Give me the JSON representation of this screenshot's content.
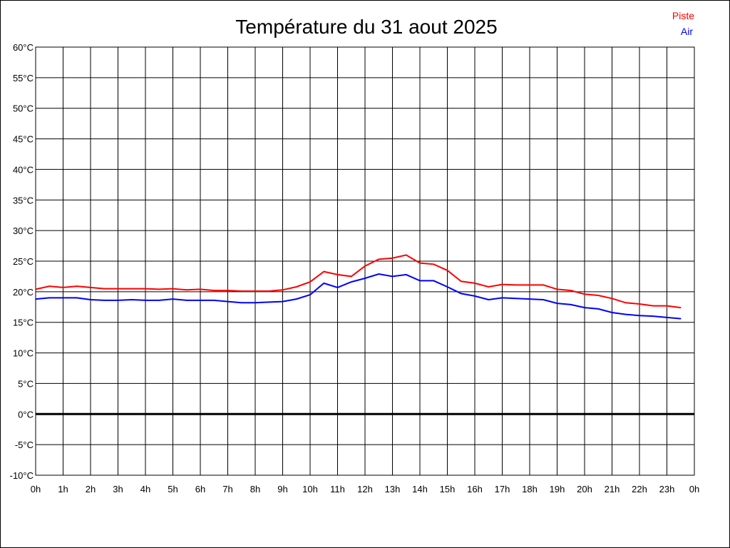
{
  "chart_data": {
    "type": "line",
    "title": "Température du 31 aout 2025",
    "xlabel": "",
    "ylabel": "",
    "ylim": [
      -10,
      60
    ],
    "xlim": [
      0,
      24
    ],
    "grid": true,
    "legend_position": "top-right",
    "y_ticks": [
      "60°C",
      "55°C",
      "50°C",
      "45°C",
      "40°C",
      "35°C",
      "30°C",
      "25°C",
      "20°C",
      "15°C",
      "10°C",
      "5°C",
      "0°C",
      "-5°C",
      "-10°C"
    ],
    "y_tick_values": [
      60,
      55,
      50,
      45,
      40,
      35,
      30,
      25,
      20,
      15,
      10,
      5,
      0,
      -5,
      -10
    ],
    "x_ticks": [
      "0h",
      "1h",
      "2h",
      "3h",
      "4h",
      "5h",
      "6h",
      "7h",
      "8h",
      "9h",
      "10h",
      "11h",
      "12h",
      "13h",
      "14h",
      "15h",
      "16h",
      "17h",
      "18h",
      "19h",
      "20h",
      "21h",
      "22h",
      "23h",
      "0h"
    ],
    "x": [
      0,
      0.5,
      1,
      1.5,
      2,
      2.5,
      3,
      3.5,
      4,
      4.5,
      5,
      5.5,
      6,
      6.5,
      7,
      7.5,
      8,
      8.5,
      9,
      9.5,
      10,
      10.5,
      11,
      11.5,
      12,
      12.5,
      13,
      13.5,
      14,
      14.5,
      15,
      15.5,
      16,
      16.5,
      17,
      17.5,
      18,
      18.5,
      19,
      19.5,
      20,
      20.5,
      21,
      21.5,
      22,
      22.5,
      23,
      23.5
    ],
    "series": [
      {
        "name": "Piste",
        "color": "#ff0000",
        "values": [
          20.4,
          20.9,
          20.7,
          20.9,
          20.7,
          20.5,
          20.5,
          20.5,
          20.5,
          20.4,
          20.5,
          20.3,
          20.4,
          20.2,
          20.2,
          20.1,
          20.1,
          20.1,
          20.3,
          20.8,
          21.6,
          23.3,
          22.8,
          22.5,
          24.2,
          25.3,
          25.5,
          26.0,
          24.7,
          24.5,
          23.5,
          21.7,
          21.4,
          20.8,
          21.2,
          21.1,
          21.1,
          21.1,
          20.4,
          20.2,
          19.6,
          19.4,
          18.9,
          18.2,
          18.0,
          17.7,
          17.7,
          17.4
        ]
      },
      {
        "name": "Air",
        "color": "#0000ff",
        "values": [
          18.8,
          19.0,
          19.0,
          19.0,
          18.7,
          18.6,
          18.6,
          18.7,
          18.6,
          18.6,
          18.8,
          18.6,
          18.6,
          18.6,
          18.4,
          18.2,
          18.2,
          18.3,
          18.4,
          18.8,
          19.5,
          21.4,
          20.7,
          21.6,
          22.2,
          22.9,
          22.5,
          22.8,
          21.8,
          21.8,
          20.8,
          19.7,
          19.3,
          18.7,
          19.0,
          18.9,
          18.8,
          18.7,
          18.1,
          17.9,
          17.4,
          17.2,
          16.6,
          16.3,
          16.1,
          16.0,
          15.8,
          15.6
        ]
      }
    ]
  }
}
